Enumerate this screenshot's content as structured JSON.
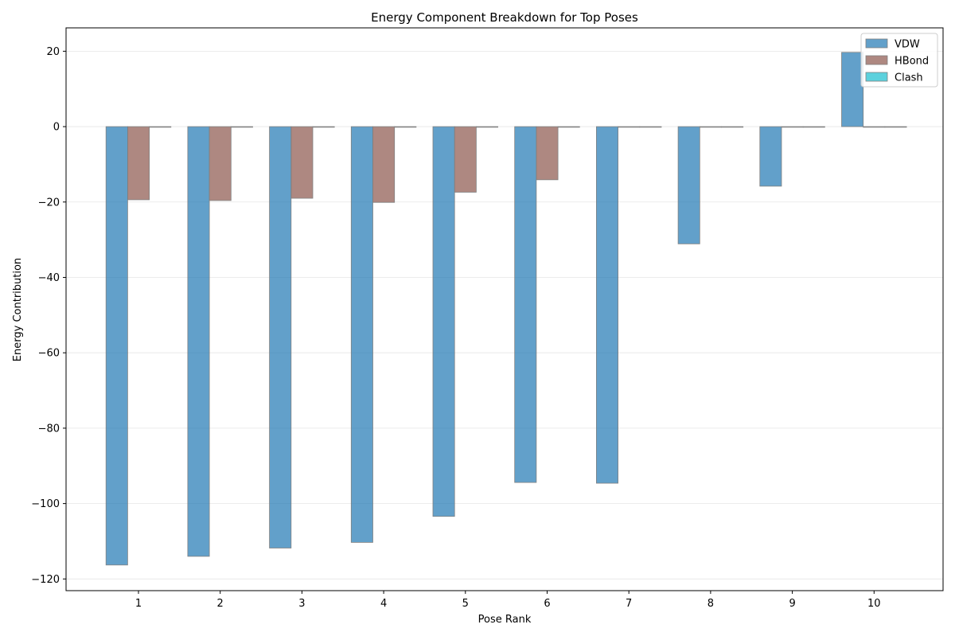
{
  "chart_data": {
    "type": "bar",
    "title": "Energy Component Breakdown for Top Poses",
    "xlabel": "Pose Rank",
    "ylabel": "Energy Contribution",
    "categories": [
      "1",
      "2",
      "3",
      "4",
      "5",
      "6",
      "7",
      "8",
      "9",
      "10"
    ],
    "series": [
      {
        "name": "VDW",
        "color": "#1f77b4",
        "values": [
          -116.3,
          -114.0,
          -111.8,
          -110.3,
          -103.4,
          -94.4,
          -94.6,
          -31.1,
          -15.8,
          19.7
        ]
      },
      {
        "name": "HBond",
        "color": "#8c564b",
        "values": [
          -19.4,
          -19.6,
          -19.0,
          -20.1,
          -17.4,
          -14.1,
          0,
          0,
          0,
          0
        ]
      },
      {
        "name": "Clash",
        "color": "#17becf",
        "values": [
          0,
          0,
          0,
          0,
          0,
          0,
          0,
          0,
          0,
          0
        ]
      }
    ],
    "yticks": [
      20,
      0,
      -20,
      -40,
      -60,
      -80,
      -100,
      -120
    ],
    "ytick_labels": [
      "20",
      "0",
      "−20",
      "−40",
      "−60",
      "−80",
      "−100",
      "−120"
    ],
    "ylim": [
      -123.1,
      26.2
    ],
    "grid": "y",
    "legend_position": "top-right"
  }
}
